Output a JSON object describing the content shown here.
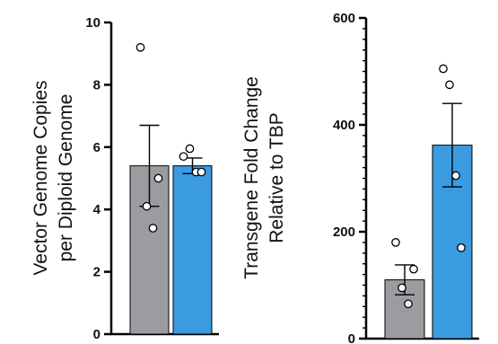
{
  "chart_data": [
    {
      "type": "bar",
      "ylabel_lines": [
        "Vector Genome Copies",
        "per Diploid Genome"
      ],
      "ylim": [
        0,
        10
      ],
      "yticks": [
        0,
        2,
        4,
        6,
        8,
        10
      ],
      "grid": false,
      "legend": "none",
      "categories": [
        "",
        ""
      ],
      "series": [
        {
          "values": [
            5.4,
            5.4
          ],
          "error": [
            1.3,
            0.25
          ],
          "colors": [
            "#9c9b9f",
            "#3a9be0"
          ],
          "points": [
            [
              9.2,
              4.1,
              3.4,
              5.0
            ],
            [
              5.7,
              5.95,
              5.2,
              5.2
            ]
          ]
        }
      ]
    },
    {
      "type": "bar",
      "ylabel_lines": [
        "Transgene Fold Change",
        "Relative to TBP"
      ],
      "ylim": [
        0,
        600
      ],
      "yticks": [
        0,
        200,
        400,
        600
      ],
      "grid": false,
      "legend": "none",
      "categories": [
        "",
        ""
      ],
      "series": [
        {
          "values": [
            110,
            362
          ],
          "error": [
            28,
            78
          ],
          "colors": [
            "#9c9b9f",
            "#3a9be0"
          ],
          "points": [
            [
              180,
              95,
              65,
              130
            ],
            [
              505,
              475,
              305,
              170
            ]
          ]
        }
      ]
    }
  ]
}
